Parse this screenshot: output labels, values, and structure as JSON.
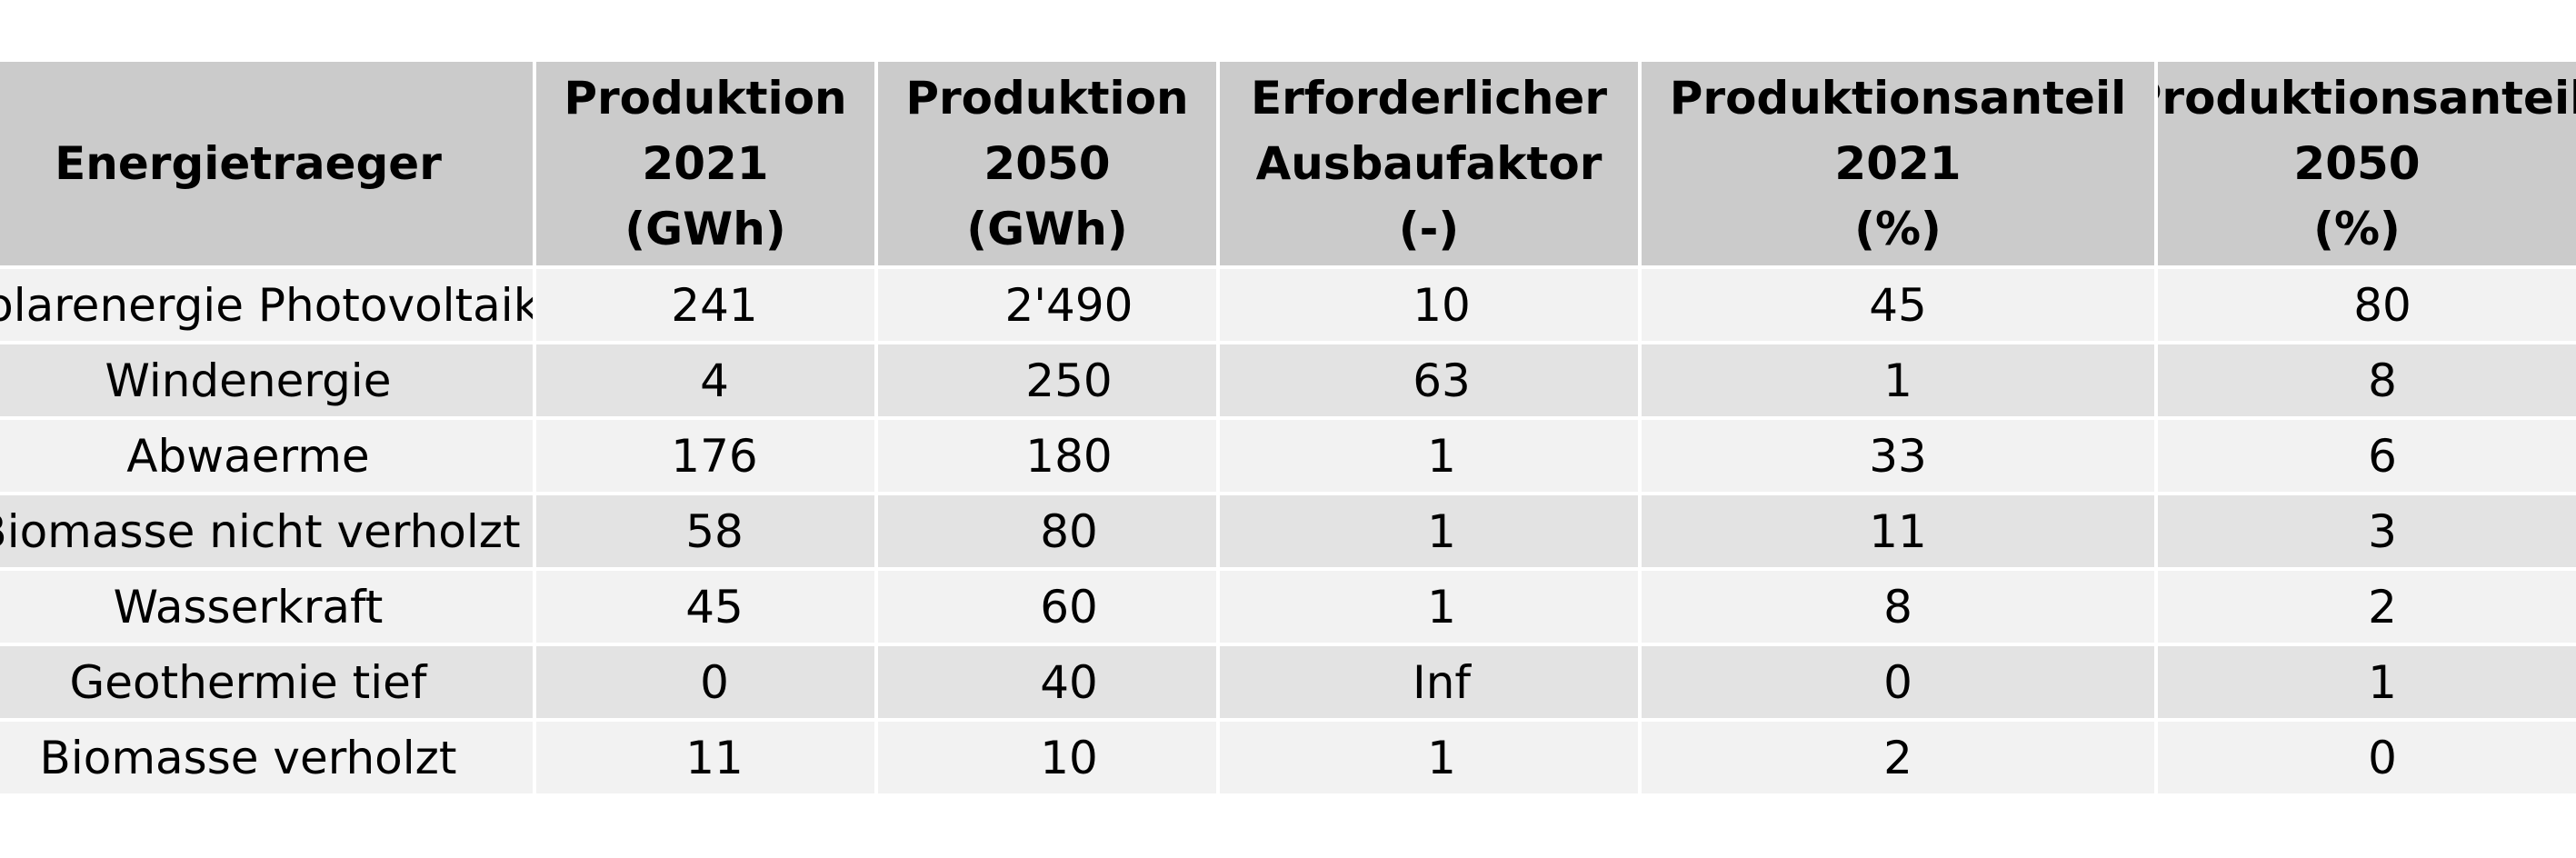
{
  "chart_data": {
    "type": "table",
    "columns": [
      [
        "Energietraeger"
      ],
      [
        "Produktion",
        "2021",
        "(GWh)"
      ],
      [
        "Produktion",
        "2050",
        "(GWh)"
      ],
      [
        "Erforderlicher",
        "Ausbaufaktor",
        "(-)"
      ],
      [
        "Produktionsanteil",
        "2021",
        "(%)"
      ],
      [
        "Produktionsanteil",
        "2050",
        "(%)"
      ]
    ],
    "rows": [
      [
        "Solarenergie Photovoltaik",
        "241",
        "2'490",
        "10",
        "45",
        "80"
      ],
      [
        "Windenergie",
        "4",
        "250",
        "63",
        "1",
        "8"
      ],
      [
        "Abwaerme",
        "176",
        "180",
        "1",
        "33",
        "6"
      ],
      [
        "Biomasse nicht verholzt",
        "58",
        "80",
        "1",
        "11",
        "3"
      ],
      [
        "Wasserkraft",
        "45",
        "60",
        "1",
        "8",
        "2"
      ],
      [
        "Geothermie tief",
        "0",
        "40",
        "Inf",
        "0",
        "1"
      ],
      [
        "Biomasse verholzt",
        "11",
        "10",
        "1",
        "2",
        "0"
      ]
    ],
    "colors": {
      "header_bg": "#cbcbcb",
      "row_odd_bg": "#f2f2f2",
      "row_even_bg": "#e3e3e3",
      "grid_line": "#ffffff"
    }
  }
}
